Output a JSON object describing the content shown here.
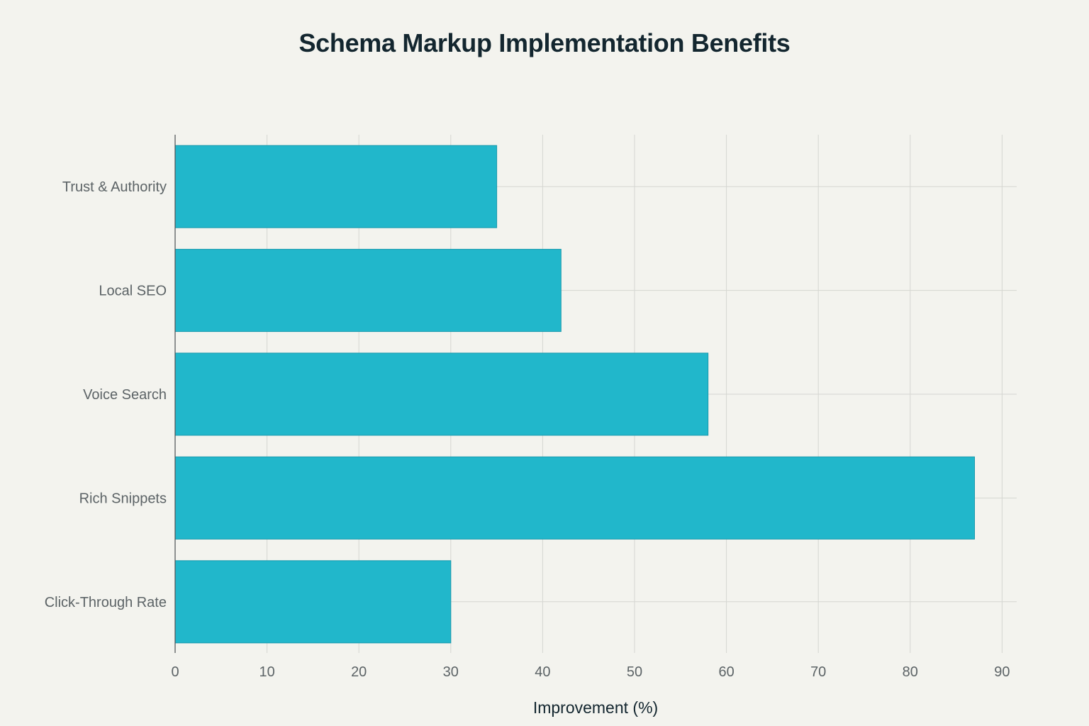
{
  "chart_data": {
    "type": "bar",
    "orientation": "horizontal",
    "title": "Schema Markup Implementation Benefits",
    "xlabel": "Improvement (%)",
    "ylabel": "",
    "categories": [
      "Trust & Authority",
      "Local SEO",
      "Voice Search",
      "Rich Snippets",
      "Click-Through Rate"
    ],
    "values": [
      35,
      42,
      58,
      87,
      30
    ],
    "xlim": [
      0,
      90
    ],
    "xticks": [
      0,
      10,
      20,
      30,
      40,
      50,
      60,
      70,
      80,
      90
    ],
    "grid": true,
    "bar_color": "#21b7cb",
    "bar_edge_color": "#1a9aad"
  }
}
